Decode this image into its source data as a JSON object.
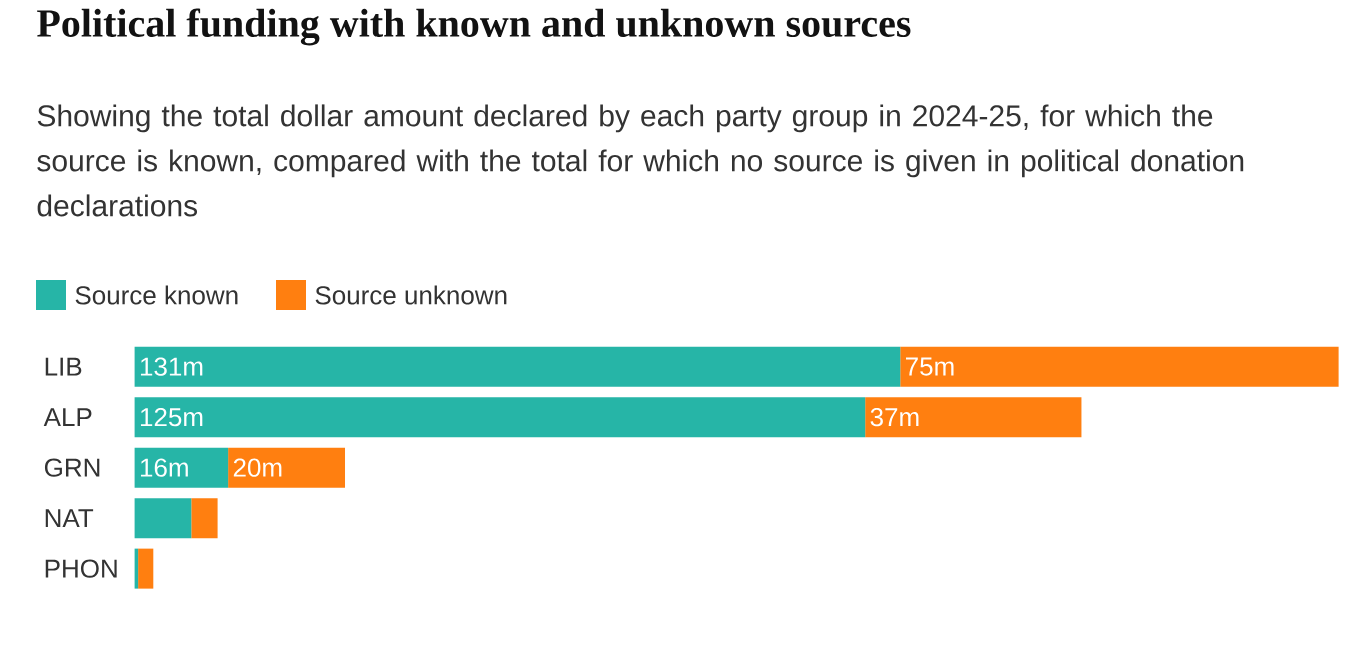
{
  "chart_data": {
    "type": "bar",
    "orientation": "horizontal",
    "stacked": true,
    "title": "Political funding with known and unknown sources",
    "subtitle": "Showing the total dollar amount declared by each party group in 2024-25, for which the source is known, compared with the total for which no source is given in political donation declarations",
    "categories": [
      "LIB",
      "ALP",
      "GRN",
      "NAT",
      "PHON"
    ],
    "legend": "top left",
    "series": [
      {
        "name": "Source known",
        "color": "#26b5a7",
        "values": [
          131,
          125,
          16,
          9.7,
          0.6
        ],
        "value_labels": [
          "131m",
          "125m",
          "16m",
          null,
          null
        ]
      },
      {
        "name": "Source unknown",
        "color": "#ff7f10",
        "values": [
          75,
          37,
          20,
          4.5,
          2.6
        ],
        "value_labels": [
          "75m",
          "37m",
          "20m",
          null,
          null
        ]
      }
    ]
  }
}
